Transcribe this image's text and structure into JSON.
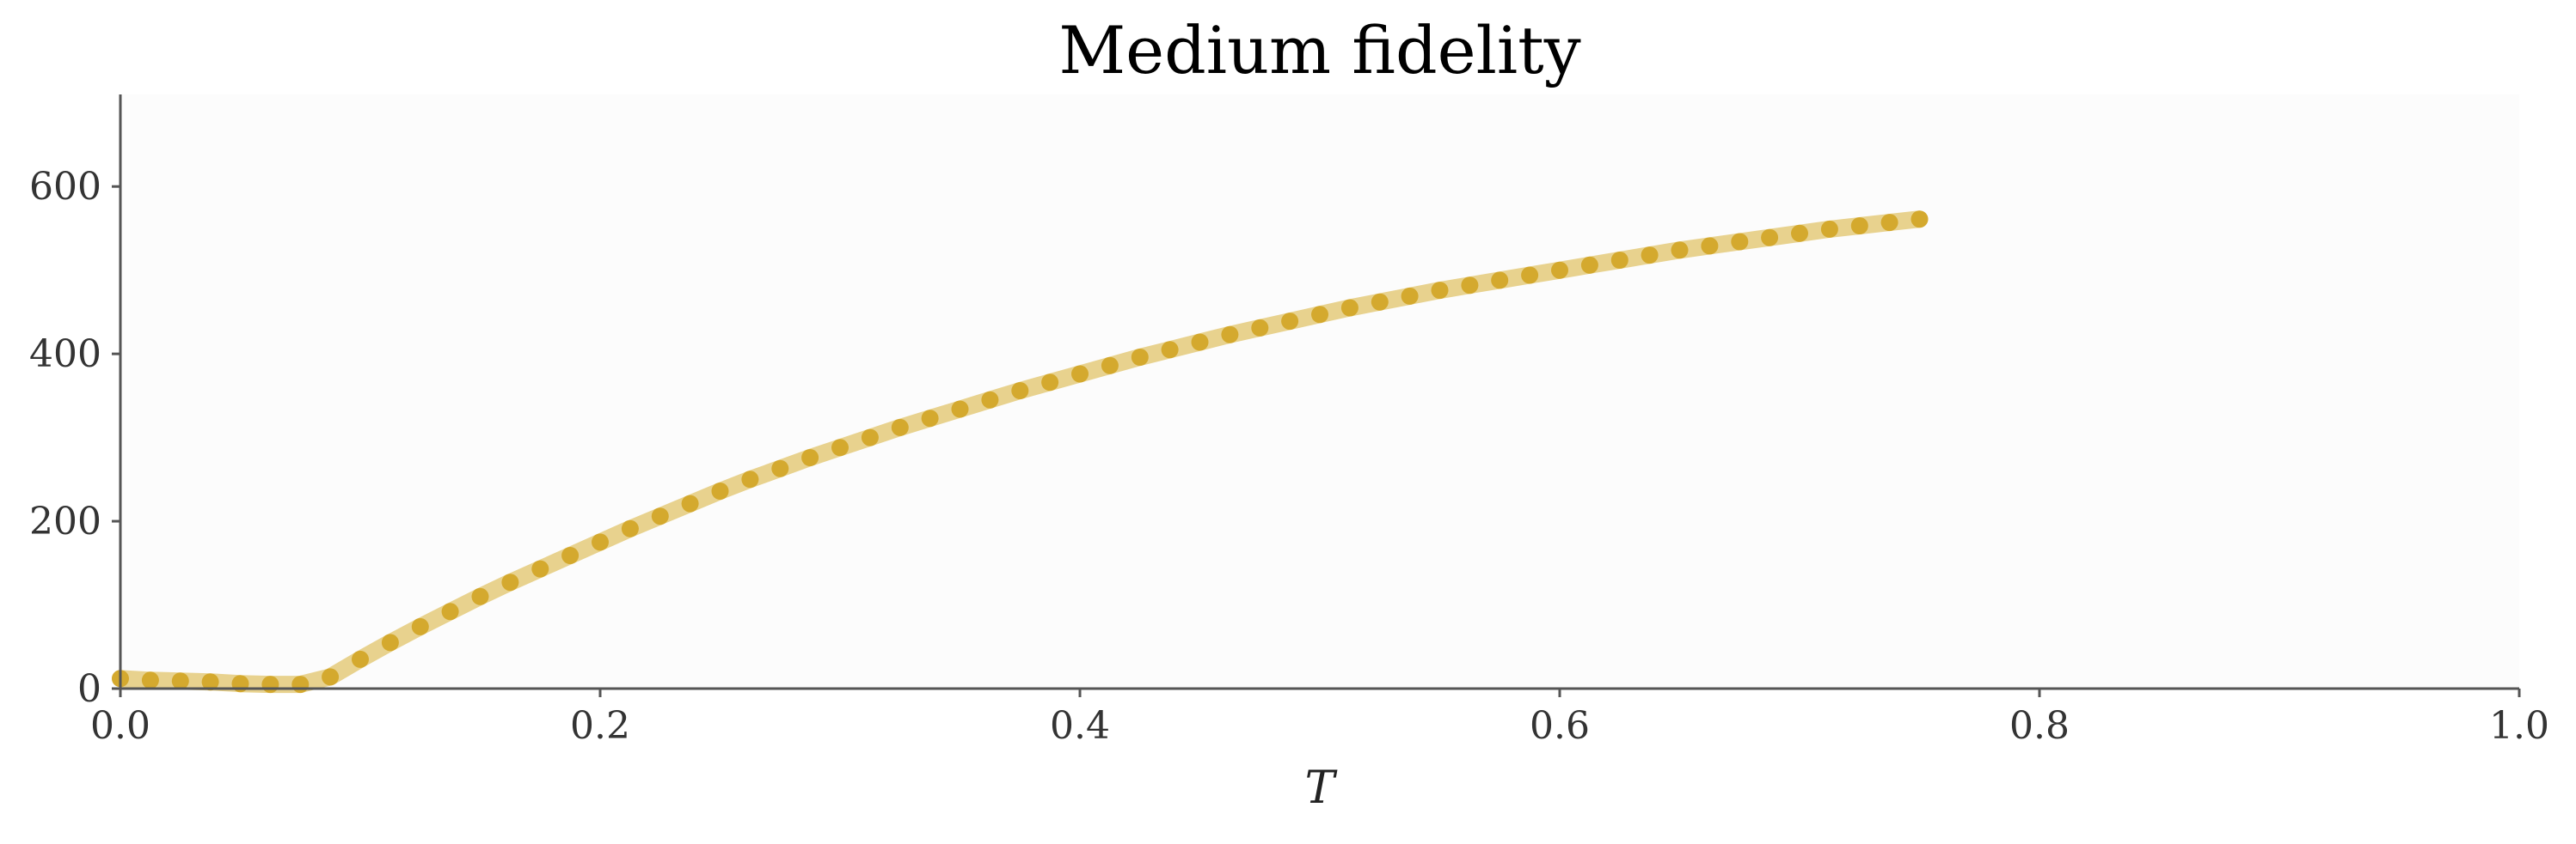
{
  "chart_data": {
    "type": "line",
    "title": "Medium fidelity",
    "xlabel": "T",
    "ylabel": "",
    "xlim": [
      0.0,
      1.0
    ],
    "ylim": [
      0,
      710
    ],
    "x_ticks": [
      0.0,
      0.2,
      0.4,
      0.6,
      0.8,
      1.0
    ],
    "x_tick_labels": [
      "0.0",
      "0.2",
      "0.4",
      "0.6",
      "0.8",
      "1.0"
    ],
    "y_ticks": [
      0,
      200,
      400,
      600
    ],
    "y_tick_labels": [
      "0",
      "200",
      "400",
      "600"
    ],
    "grid": false,
    "legend": "none",
    "colors": {
      "line": "#e8d28e",
      "marker": "#d4a92e",
      "plot_background": "#fcfcfc"
    },
    "series": [
      {
        "x": [
          0.0,
          0.0125,
          0.025,
          0.0375,
          0.05,
          0.0625,
          0.075,
          0.0875,
          0.1,
          0.1125,
          0.125,
          0.1375,
          0.15,
          0.1625,
          0.175,
          0.1875,
          0.2,
          0.2125,
          0.225,
          0.2375,
          0.25,
          0.2625,
          0.275,
          0.2875,
          0.3,
          0.3125,
          0.325,
          0.3375,
          0.35,
          0.3625,
          0.375,
          0.3875,
          0.4,
          0.4125,
          0.425,
          0.4375,
          0.45,
          0.4625,
          0.475,
          0.4875,
          0.5,
          0.5125,
          0.525,
          0.5375,
          0.55,
          0.5625,
          0.575,
          0.5875,
          0.6,
          0.6125,
          0.625,
          0.6375,
          0.65,
          0.6625,
          0.675,
          0.6875,
          0.7,
          0.7125,
          0.725,
          0.7375,
          0.75
        ],
        "y": [
          12,
          10,
          9,
          8,
          6,
          5,
          5,
          14,
          35,
          55,
          74,
          92,
          110,
          127,
          143,
          159,
          175,
          191,
          206,
          221,
          236,
          250,
          263,
          276,
          288,
          300,
          312,
          323,
          334,
          345,
          356,
          366,
          376,
          386,
          396,
          405,
          414,
          423,
          431,
          439,
          447,
          455,
          462,
          469,
          476,
          482,
          488,
          494,
          500,
          506,
          512,
          518,
          524,
          529,
          534,
          539,
          544,
          549,
          553,
          557,
          561
        ]
      }
    ]
  }
}
